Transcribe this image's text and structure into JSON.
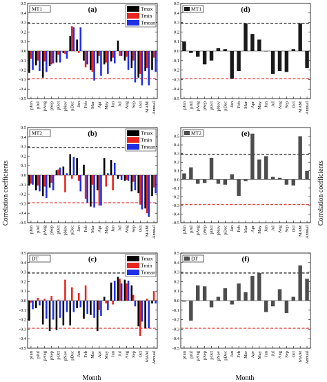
{
  "figure": {
    "ylabel_left": "Correlation coefficients",
    "ylabel_right": "Correlation coefficients",
    "xlabel": "Month",
    "ytick_labels": [
      "-0.5",
      "-0.4",
      "-0.3",
      "-0.2",
      "-0.1",
      "0.0",
      "0.1",
      "0.2",
      "0.3",
      "0.4",
      "0.5"
    ],
    "month_labels": [
      "pJun",
      "pJul",
      "pAug",
      "pSep",
      "pOct",
      "pNov",
      "pDec",
      "Jan",
      "Feb",
      "Mar",
      "Apr",
      "May",
      "Jun",
      "Jul",
      "Aug",
      "Sep",
      "Oct",
      "MAM",
      "Annual"
    ],
    "colors": {
      "Tmax": "#000000",
      "Tmin": "#e8251f",
      "Tmean": "#1f2fe8",
      "single_dark": "#1a1a1a",
      "single_grey": "#4d4d4d",
      "ref_black": "#000000",
      "ref_red": "#e8251f"
    }
  },
  "chart_data": [
    {
      "id": "a",
      "panel_label": "(a)",
      "region": "MT1",
      "type": "bar",
      "categories": [
        "pJun",
        "pJul",
        "pAug",
        "pSep",
        "pOct",
        "pNov",
        "pDec",
        "Jan",
        "Feb",
        "Mar",
        "Apr",
        "May",
        "Jun",
        "Jul",
        "Aug",
        "Sep",
        "Oct",
        "MAM",
        "Annual"
      ],
      "series": [
        {
          "name": "Tmax",
          "values": [
            -0.23,
            -0.15,
            -0.28,
            -0.16,
            -0.12,
            -0.02,
            0.16,
            0.12,
            -0.1,
            -0.2,
            -0.13,
            -0.14,
            -0.11,
            0.11,
            -0.1,
            -0.18,
            -0.28,
            -0.21,
            -0.2
          ]
        },
        {
          "name": "Tmin",
          "values": [
            -0.08,
            -0.1,
            -0.11,
            -0.14,
            -0.04,
            -0.03,
            0.26,
            -0.02,
            -0.17,
            -0.22,
            -0.05,
            -0.12,
            -0.07,
            -0.05,
            -0.06,
            -0.1,
            -0.24,
            -0.18,
            -0.07
          ]
        },
        {
          "name": "Tmean",
          "values": [
            -0.2,
            -0.21,
            -0.22,
            -0.13,
            -0.12,
            -0.08,
            0.25,
            0.25,
            -0.14,
            -0.31,
            -0.26,
            -0.24,
            -0.13,
            -0.05,
            -0.2,
            -0.33,
            -0.36,
            -0.36,
            -0.22
          ]
        }
      ],
      "ylim": [
        -0.5,
        0.5
      ],
      "ref_lines": [
        0.29,
        -0.29
      ],
      "legend": "top-right"
    },
    {
      "id": "d",
      "panel_label": "(d)",
      "region": "MT1",
      "type": "bar",
      "categories": [
        "pJun",
        "pJul",
        "pAug",
        "pSep",
        "pOct",
        "pNov",
        "pDec",
        "Jan",
        "Feb",
        "Mar",
        "Apr",
        "May",
        "Jun",
        "Jul",
        "Aug",
        "Sep",
        "Oct",
        "MAM",
        "Annual"
      ],
      "series": [
        {
          "name": "MT1",
          "values": [
            0.1,
            -0.02,
            -0.06,
            -0.14,
            -0.1,
            0.03,
            0.02,
            -0.29,
            -0.21,
            0.29,
            0.18,
            0.12,
            0.0,
            -0.24,
            -0.21,
            -0.22,
            0.02,
            0.29,
            -0.18
          ]
        }
      ],
      "ylim": [
        -0.5,
        0.5
      ],
      "ref_lines": [
        0.29,
        -0.29
      ],
      "legend": "top-left"
    },
    {
      "id": "b",
      "panel_label": "(b)",
      "region": "MT2",
      "type": "bar",
      "categories": [
        "pJun",
        "pJul",
        "pAug",
        "pSep",
        "pOct",
        "pNov",
        "pDec",
        "Jan",
        "Feb",
        "Mar",
        "Apr",
        "May",
        "Jun",
        "Jul",
        "Aug",
        "Sep",
        "Oct",
        "MAM",
        "Annual"
      ],
      "series": [
        {
          "name": "Tmax",
          "values": [
            -0.11,
            -0.16,
            -0.22,
            -0.13,
            0.05,
            0.09,
            0.22,
            0.18,
            0.11,
            -0.33,
            -0.16,
            0.18,
            0.16,
            -0.04,
            -0.06,
            -0.17,
            -0.19,
            -0.35,
            -0.22
          ]
        },
        {
          "name": "Tmin",
          "values": [
            -0.09,
            -0.11,
            -0.12,
            -0.08,
            0.06,
            -0.18,
            -0.04,
            -0.06,
            -0.25,
            -0.1,
            -0.32,
            -0.12,
            -0.16,
            -0.01,
            -0.05,
            -0.07,
            -0.31,
            -0.4,
            -0.13
          ]
        },
        {
          "name": "Tmean",
          "values": [
            -0.1,
            -0.17,
            -0.24,
            -0.16,
            0.08,
            0.02,
            0.19,
            -0.17,
            -0.29,
            -0.34,
            -0.32,
            0.02,
            0.13,
            -0.05,
            -0.06,
            -0.16,
            -0.36,
            -0.44,
            -0.19
          ]
        }
      ],
      "ylim": [
        -0.5,
        0.5
      ],
      "ref_lines": [
        0.29,
        -0.29
      ],
      "legend": "top-right"
    },
    {
      "id": "e",
      "panel_label": "(e)",
      "region": "MT2",
      "type": "bar",
      "categories": [
        "pJun",
        "pJul",
        "pAug",
        "pSep",
        "pOct",
        "pNov",
        "pDec",
        "Jan",
        "Feb",
        "Mar",
        "Apr",
        "May",
        "Jun",
        "Jul",
        "Aug",
        "Sep",
        "Oct",
        "MAM",
        "Annual"
      ],
      "series": [
        {
          "name": "MT2",
          "values": [
            0.07,
            0.14,
            -0.05,
            -0.04,
            0.25,
            -0.05,
            -0.06,
            0.06,
            -0.19,
            -0.02,
            0.53,
            0.23,
            0.27,
            0.03,
            0.02,
            -0.06,
            -0.07,
            0.5,
            0.1
          ]
        }
      ],
      "ylim": [
        -0.5,
        0.6
      ],
      "ref_lines": [
        0.29,
        -0.29
      ],
      "legend": "top-left"
    },
    {
      "id": "c",
      "panel_label": "(c)",
      "region": "DT",
      "type": "bar",
      "categories": [
        "pJun",
        "pJul",
        "pAug",
        "pSep",
        "pOct",
        "pNov",
        "pDec",
        "Jan",
        "Feb",
        "Mar",
        "Apr",
        "May",
        "Jun",
        "Jul",
        "Aug",
        "Sep",
        "Oct",
        "MAM",
        "Annual"
      ],
      "series": [
        {
          "name": "Tmax",
          "values": [
            -0.21,
            -0.08,
            -0.25,
            -0.32,
            -0.31,
            -0.26,
            -0.26,
            -0.08,
            -0.19,
            -0.15,
            -0.32,
            0.04,
            0.19,
            0.25,
            0.22,
            0.16,
            -0.27,
            -0.29,
            -0.03
          ]
        },
        {
          "name": "Tmin",
          "values": [
            -0.02,
            0.03,
            0.02,
            0.05,
            0.01,
            0.22,
            0.14,
            0.08,
            0.16,
            0.0,
            -0.1,
            -0.03,
            -0.04,
            0.23,
            0.18,
            0.06,
            -0.37,
            0.02,
            0.1
          ]
        },
        {
          "name": "Tmean",
          "values": [
            -0.09,
            -0.05,
            -0.19,
            -0.2,
            -0.18,
            -0.12,
            -0.12,
            -0.07,
            -0.14,
            -0.18,
            -0.16,
            -0.1,
            0.21,
            0.18,
            0.21,
            -0.06,
            -0.22,
            -0.29,
            -0.03
          ]
        }
      ],
      "ylim": [
        -0.5,
        0.5
      ],
      "ref_lines": [
        0.29,
        -0.29
      ],
      "legend": "top-right"
    },
    {
      "id": "f",
      "panel_label": "(f)",
      "region": "DT",
      "type": "bar",
      "categories": [
        "pJun",
        "pJul",
        "pAug",
        "pSep",
        "pOct",
        "pNov",
        "pDec",
        "Jan",
        "Feb",
        "Mar",
        "Apr",
        "May",
        "Jun",
        "Jul",
        "Aug",
        "Sep",
        "Oct",
        "MAM",
        "Annual"
      ],
      "series": [
        {
          "name": "DT",
          "values": [
            -0.01,
            -0.21,
            0.16,
            0.15,
            -0.07,
            0.04,
            0.13,
            -0.04,
            0.18,
            0.09,
            0.26,
            0.29,
            -0.12,
            -0.06,
            0.12,
            -0.13,
            0.04,
            0.37,
            0.23
          ]
        }
      ],
      "ylim": [
        -0.5,
        0.5
      ],
      "ref_lines": [
        0.29,
        -0.29
      ],
      "legend": "top-left"
    }
  ]
}
